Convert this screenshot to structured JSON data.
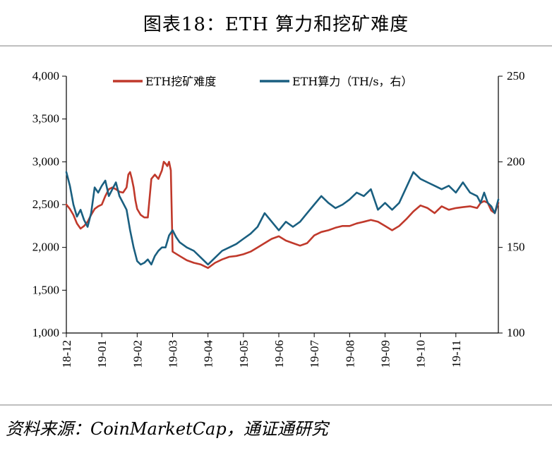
{
  "figure": {
    "title": "图表18：ETH 算力和挖矿难度",
    "source": "资料来源：CoinMarketCap，通证通研究"
  },
  "colors": {
    "difficulty": "#c0392b",
    "hashrate": "#1a5f80",
    "axis": "#000000",
    "rule": "#bfbfbf"
  },
  "chart_data": {
    "type": "line",
    "x_tick_labels": [
      "18-12",
      "19-01",
      "19-02",
      "19-03",
      "19-04",
      "19-05",
      "19-06",
      "19-07",
      "19-08",
      "19-09",
      "19-10",
      "19-11"
    ],
    "x_range": [
      0,
      12.2
    ],
    "y_left": {
      "range": [
        1000,
        4000
      ],
      "ticks": [
        1000,
        1500,
        2000,
        2500,
        3000,
        3500,
        4000
      ],
      "tick_labels": [
        "1,000",
        "1,500",
        "2,000",
        "2,500",
        "3,000",
        "3,500",
        "4,000"
      ]
    },
    "y_right": {
      "range": [
        100,
        250
      ],
      "ticks": [
        100,
        150,
        200,
        250
      ],
      "tick_labels": [
        "100",
        "150",
        "200",
        "250"
      ]
    },
    "legend_position": "top",
    "series": [
      {
        "name": "ETH挖矿难度",
        "axis": "left",
        "x": [
          0,
          0.1,
          0.2,
          0.3,
          0.4,
          0.5,
          0.6,
          0.7,
          0.8,
          0.9,
          1.0,
          1.1,
          1.2,
          1.3,
          1.4,
          1.5,
          1.6,
          1.7,
          1.75,
          1.8,
          1.85,
          1.9,
          1.95,
          2.0,
          2.1,
          2.2,
          2.3,
          2.4,
          2.5,
          2.6,
          2.7,
          2.75,
          2.8,
          2.85,
          2.9,
          2.95,
          3.0,
          3.2,
          3.4,
          3.6,
          3.8,
          4.0,
          4.2,
          4.4,
          4.6,
          4.8,
          5.0,
          5.2,
          5.4,
          5.6,
          5.8,
          6.0,
          6.2,
          6.4,
          6.6,
          6.8,
          7.0,
          7.2,
          7.4,
          7.6,
          7.8,
          8.0,
          8.2,
          8.4,
          8.6,
          8.8,
          9.0,
          9.2,
          9.4,
          9.6,
          9.8,
          10.0,
          10.2,
          10.4,
          10.6,
          10.8,
          11.0,
          11.2,
          11.4,
          11.6,
          11.7,
          11.8,
          11.9,
          12.0,
          12.1,
          12.2
        ],
        "values": [
          2500,
          2450,
          2380,
          2280,
          2220,
          2250,
          2300,
          2380,
          2450,
          2480,
          2500,
          2600,
          2680,
          2700,
          2680,
          2650,
          2640,
          2700,
          2850,
          2880,
          2800,
          2700,
          2550,
          2450,
          2380,
          2350,
          2350,
          2800,
          2850,
          2800,
          2900,
          3000,
          2980,
          2950,
          3000,
          2900,
          1950,
          1900,
          1850,
          1820,
          1800,
          1760,
          1820,
          1860,
          1890,
          1900,
          1920,
          1950,
          2000,
          2050,
          2100,
          2130,
          2080,
          2050,
          2020,
          2050,
          2140,
          2180,
          2200,
          2230,
          2250,
          2250,
          2280,
          2300,
          2320,
          2300,
          2250,
          2200,
          2250,
          2330,
          2420,
          2490,
          2460,
          2400,
          2480,
          2440,
          2460,
          2470,
          2480,
          2460,
          2520,
          2540,
          2520,
          2430,
          2400,
          2520
        ]
      },
      {
        "name": "ETH算力（TH/s，右）",
        "axis": "right",
        "x": [
          0,
          0.1,
          0.2,
          0.3,
          0.4,
          0.5,
          0.6,
          0.7,
          0.8,
          0.9,
          1.0,
          1.1,
          1.2,
          1.3,
          1.4,
          1.5,
          1.6,
          1.7,
          1.8,
          1.9,
          2.0,
          2.1,
          2.2,
          2.3,
          2.4,
          2.5,
          2.6,
          2.7,
          2.8,
          2.9,
          3.0,
          3.1,
          3.2,
          3.4,
          3.6,
          3.8,
          4.0,
          4.2,
          4.4,
          4.6,
          4.8,
          5.0,
          5.2,
          5.4,
          5.6,
          5.8,
          6.0,
          6.2,
          6.4,
          6.6,
          6.8,
          7.0,
          7.2,
          7.4,
          7.6,
          7.8,
          8.0,
          8.2,
          8.4,
          8.6,
          8.8,
          9.0,
          9.2,
          9.4,
          9.6,
          9.8,
          10.0,
          10.2,
          10.4,
          10.6,
          10.8,
          11.0,
          11.2,
          11.4,
          11.6,
          11.7,
          11.8,
          11.9,
          12.0,
          12.1,
          12.2
        ],
        "values": [
          194,
          186,
          175,
          168,
          172,
          166,
          162,
          170,
          185,
          182,
          186,
          189,
          180,
          184,
          188,
          180,
          176,
          172,
          160,
          150,
          142,
          140,
          141,
          143,
          140,
          145,
          148,
          150,
          150,
          157,
          160,
          156,
          153,
          150,
          148,
          144,
          140,
          144,
          148,
          150,
          152,
          155,
          158,
          162,
          170,
          165,
          160,
          165,
          162,
          165,
          170,
          175,
          180,
          176,
          173,
          175,
          178,
          182,
          180,
          184,
          172,
          176,
          172,
          176,
          185,
          194,
          190,
          188,
          186,
          184,
          186,
          182,
          188,
          182,
          180,
          176,
          182,
          176,
          174,
          170,
          178
        ]
      }
    ]
  }
}
